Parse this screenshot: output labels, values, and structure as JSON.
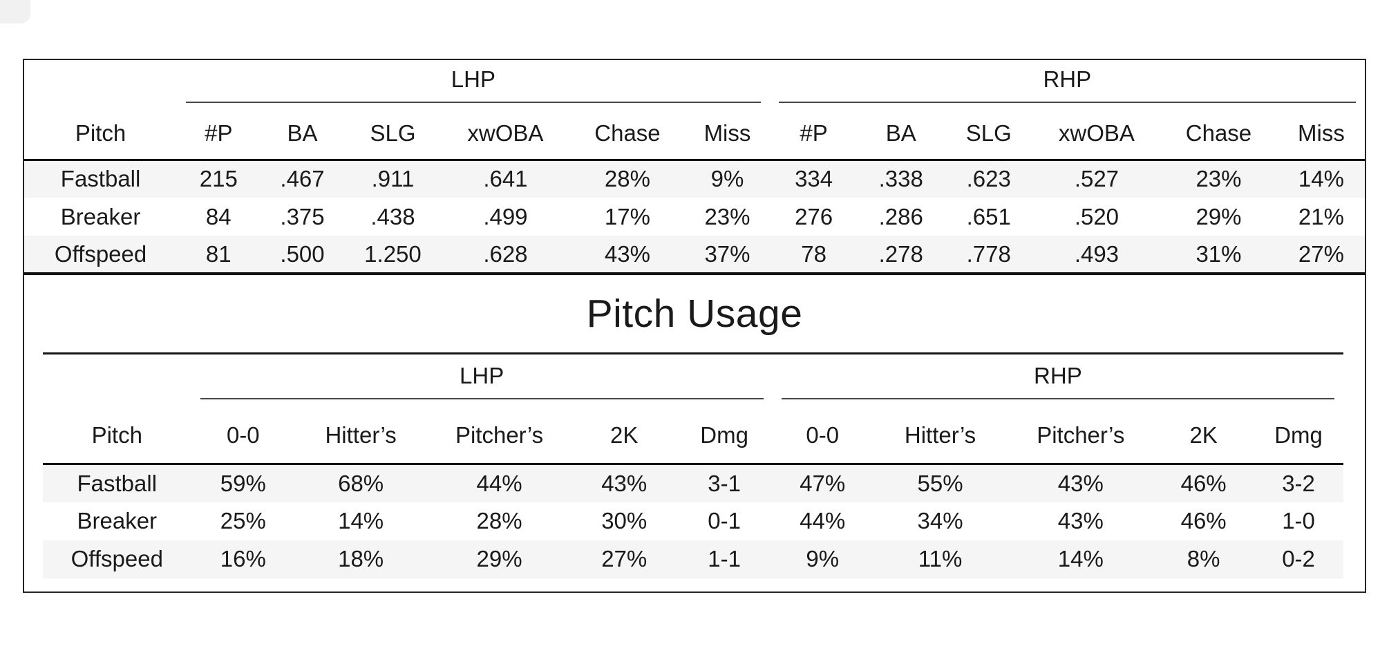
{
  "colors": {
    "background": "#ffffff",
    "text": "#1a1a1a",
    "row_stripe": "#f5f5f5",
    "heavy_rule": "#131313",
    "group_rule": "#474747",
    "card_border": "#232323"
  },
  "chart_data": [
    {
      "type": "table",
      "title": "",
      "group_columns": [
        "LHP",
        "RHP"
      ],
      "group_spans": [
        6,
        6
      ],
      "columns": [
        "Pitch",
        "#P",
        "BA",
        "SLG",
        "xwOBA",
        "Chase",
        "Miss",
        "#P",
        "BA",
        "SLG",
        "xwOBA",
        "Chase",
        "Miss"
      ],
      "rows": [
        [
          "Fastball",
          "215",
          ".467",
          ".911",
          ".641",
          "28%",
          "9%",
          "334",
          ".338",
          ".623",
          ".527",
          "23%",
          "14%"
        ],
        [
          "Breaker",
          "84",
          ".375",
          ".438",
          ".499",
          "17%",
          "23%",
          "276",
          ".286",
          ".651",
          ".520",
          "29%",
          "21%"
        ],
        [
          "Offspeed",
          "81",
          ".500",
          "1.250",
          ".628",
          "43%",
          "37%",
          "78",
          ".278",
          ".778",
          ".493",
          "31%",
          "27%"
        ]
      ]
    },
    {
      "type": "table",
      "title": "Pitch Usage",
      "group_columns": [
        "LHP",
        "RHP"
      ],
      "group_spans": [
        5,
        5
      ],
      "columns": [
        "Pitch",
        "0-0",
        "Hitter’s",
        "Pitcher’s",
        "2K",
        "Dmg",
        "0-0",
        "Hitter’s",
        "Pitcher’s",
        "2K",
        "Dmg"
      ],
      "rows": [
        [
          "Fastball",
          "59%",
          "68%",
          "44%",
          "43%",
          "3-1",
          "47%",
          "55%",
          "43%",
          "46%",
          "3-2"
        ],
        [
          "Breaker",
          "25%",
          "14%",
          "28%",
          "30%",
          "0-1",
          "44%",
          "34%",
          "43%",
          "46%",
          "1-0"
        ],
        [
          "Offspeed",
          "16%",
          "18%",
          "29%",
          "27%",
          "1-1",
          "9%",
          "11%",
          "14%",
          "8%",
          "0-2"
        ]
      ]
    }
  ]
}
